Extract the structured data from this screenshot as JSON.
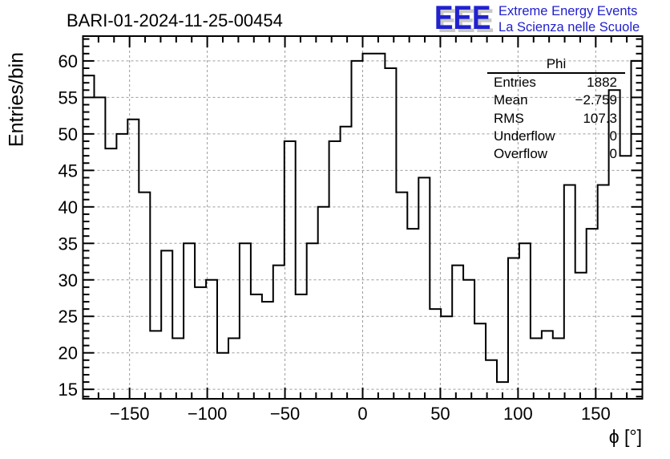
{
  "header": {
    "logo": {
      "acronym": "EEE",
      "tagline1": "Extreme Energy Events",
      "tagline2": "La Scienza nelle Scuole",
      "text_color": "#2121ce",
      "shadow_color": "#c8c8c8"
    }
  },
  "chart_data": {
    "type": "bar",
    "title": "BARI-01-2024-11-25-00454",
    "xlabel": "ϕ [°]",
    "ylabel": "Entries/bin",
    "x_range": [
      -180,
      180
    ],
    "y_range": [
      13.7,
      63.4
    ],
    "grid": true,
    "line_color": "#000000",
    "grid_color": "#9c9c9c",
    "bins": {
      "start": -180,
      "width": 7.2,
      "count": 50
    },
    "values": [
      58,
      55,
      48,
      50,
      52,
      42,
      23,
      34,
      22,
      35,
      29,
      30,
      20,
      22,
      35,
      28,
      27,
      32,
      49,
      28,
      35,
      40,
      49,
      51,
      60,
      61,
      61,
      59,
      42,
      37,
      44,
      26,
      25,
      32,
      30,
      24,
      19,
      16,
      33,
      35,
      22,
      23,
      22,
      43,
      31,
      37,
      43,
      56,
      47,
      60
    ],
    "x_ticks": [
      {
        "v": -150,
        "label": "−150"
      },
      {
        "v": -100,
        "label": "−100"
      },
      {
        "v": -50,
        "label": "−50"
      },
      {
        "v": 0,
        "label": "0"
      },
      {
        "v": 50,
        "label": "50"
      },
      {
        "v": 100,
        "label": "100"
      },
      {
        "v": 150,
        "label": "150"
      }
    ],
    "x_minor_step": 10,
    "y_ticks": [
      {
        "v": 15,
        "label": "15"
      },
      {
        "v": 20,
        "label": "20"
      },
      {
        "v": 25,
        "label": "25"
      },
      {
        "v": 30,
        "label": "30"
      },
      {
        "v": 35,
        "label": "35"
      },
      {
        "v": 40,
        "label": "40"
      },
      {
        "v": 45,
        "label": "45"
      },
      {
        "v": 50,
        "label": "50"
      },
      {
        "v": 55,
        "label": "55"
      },
      {
        "v": 60,
        "label": "60"
      }
    ],
    "y_minor_step": 1,
    "stats": {
      "title": "Phi",
      "rows": [
        {
          "label": "Entries",
          "value": "1882"
        },
        {
          "label": "Mean",
          "value": "−2.759"
        },
        {
          "label": "RMS",
          "value": "107.3"
        },
        {
          "label": "Underflow",
          "value": "0"
        },
        {
          "label": "Overflow",
          "value": "0"
        }
      ]
    }
  }
}
